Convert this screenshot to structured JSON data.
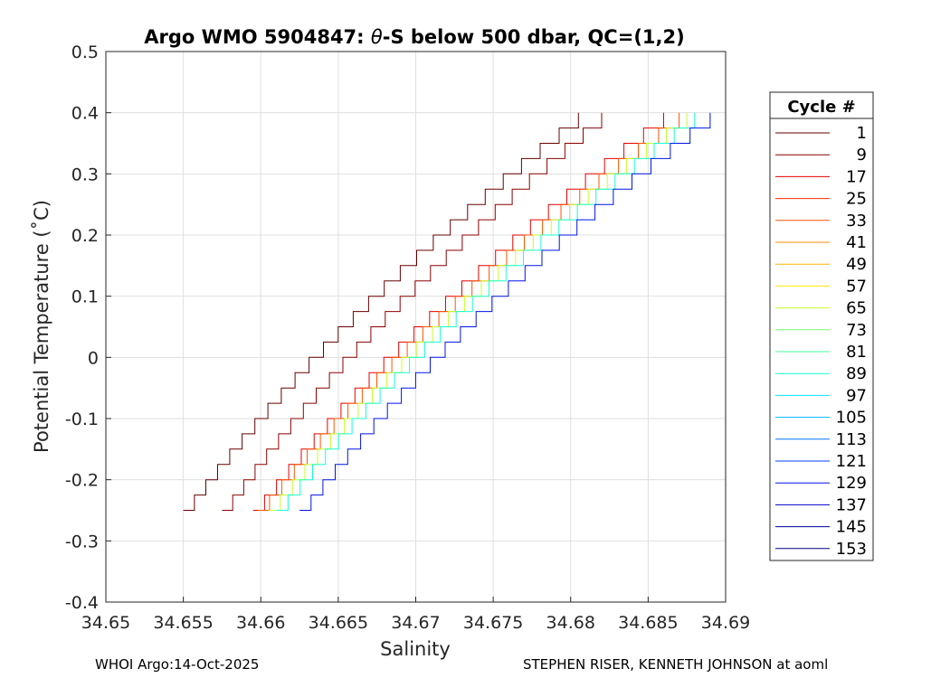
{
  "chart_data": {
    "type": "line",
    "title_prefix": "Argo WMO 5904847: ",
    "title_symbol": "θ",
    "title_suffix": "-S below 500 dbar,  QC=(1,2)",
    "xlabel": "Salinity",
    "ylabel": "Potential Temperature (˚C)",
    "xlim": [
      34.65,
      34.69
    ],
    "ylim": [
      -0.4,
      0.5
    ],
    "x_ticks": [
      "34.65",
      "34.655",
      "34.66",
      "34.665",
      "34.67",
      "34.675",
      "34.68",
      "34.685",
      "34.69"
    ],
    "y_ticks": [
      "-0.4",
      "-0.3",
      "-0.2",
      "-0.1",
      "0",
      "0.1",
      "0.2",
      "0.3",
      "0.4",
      "0.5"
    ],
    "grid": true,
    "legend": {
      "title": "Cycle #",
      "placement": "outside-right",
      "entries": [
        "1",
        "9",
        "17",
        "25",
        "33",
        "41",
        "49",
        "57",
        "65",
        "73",
        "81",
        "89",
        "97",
        "105",
        "113",
        "121",
        "129",
        "137",
        "145",
        "153"
      ],
      "colors": [
        "#660000",
        "#8c0000",
        "#e60000",
        "#ff2a00",
        "#ff5500",
        "#ff8c00",
        "#ffb400",
        "#ffe600",
        "#c8ff2a",
        "#78ff6e",
        "#3cffa0",
        "#14ffd2",
        "#00e6ff",
        "#00b4ff",
        "#0078ff",
        "#0040ff",
        "#0014e6",
        "#0000c8",
        "#0000a0",
        "#000082"
      ]
    },
    "series_by_cycle_band": [
      {
        "cycles": "1",
        "color": "#660000",
        "salinity_at_theta_minus_0_25": 34.655,
        "salinity_at_theta_0_40": 34.6805
      },
      {
        "cycles": "9",
        "color": "#8c0000",
        "salinity_at_theta_minus_0_25": 34.6575,
        "salinity_at_theta_0_40": 34.682
      },
      {
        "cycles": "17",
        "color": "#e60000",
        "salinity_at_theta_minus_0_25": 34.6595,
        "salinity_at_theta_0_40": 34.686
      },
      {
        "cycles": "25-41",
        "color": "#ff5500",
        "salinity_at_theta_minus_0_25": 34.6598,
        "salinity_at_theta_0_40": 34.687
      },
      {
        "cycles": "49-73",
        "color": "#c8ff2a",
        "salinity_at_theta_minus_0_25": 34.6605,
        "salinity_at_theta_0_40": 34.6875
      },
      {
        "cycles": "81-105",
        "color": "#14ffd2",
        "salinity_at_theta_minus_0_25": 34.661,
        "salinity_at_theta_0_40": 34.688
      },
      {
        "cycles": "113-153",
        "color": "#0014e6",
        "salinity_at_theta_minus_0_25": 34.6625,
        "salinity_at_theta_0_40": 34.689
      }
    ]
  },
  "footer": {
    "left": "WHOI Argo:14-Oct-2025",
    "right": "STEPHEN RISER, KENNETH JOHNSON at aoml"
  }
}
